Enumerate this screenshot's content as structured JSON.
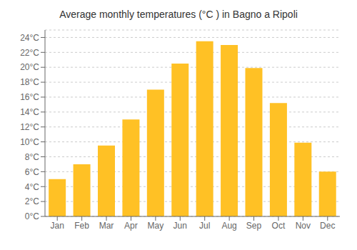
{
  "chart_data": {
    "type": "bar",
    "title": "Average monthly temperatures (°C ) in Bagno a Ripoli",
    "categories": [
      "Jan",
      "Feb",
      "Mar",
      "Apr",
      "May",
      "Jun",
      "Jul",
      "Aug",
      "Sep",
      "Oct",
      "Nov",
      "Dec"
    ],
    "values": [
      5.0,
      7.0,
      9.5,
      13.0,
      17.0,
      20.5,
      23.5,
      23.0,
      19.9,
      15.2,
      9.9,
      6.0
    ],
    "color": "#FFC125",
    "ylim": [
      0,
      25
    ],
    "yticks": [
      {
        "value": 0,
        "label": "0°C"
      },
      {
        "value": 2,
        "label": "2°C"
      },
      {
        "value": 4,
        "label": "4°C"
      },
      {
        "value": 6,
        "label": "6°C"
      },
      {
        "value": 8,
        "label": "8°C"
      },
      {
        "value": 10,
        "label": "10°C"
      },
      {
        "value": 12,
        "label": "12°C"
      },
      {
        "value": 14,
        "label": "14°C"
      },
      {
        "value": 16,
        "label": "16°C"
      },
      {
        "value": 18,
        "label": "18°C"
      },
      {
        "value": 20,
        "label": "20°C"
      },
      {
        "value": 22,
        "label": "22°C"
      },
      {
        "value": 24,
        "label": "24°C"
      }
    ],
    "grid": true
  }
}
